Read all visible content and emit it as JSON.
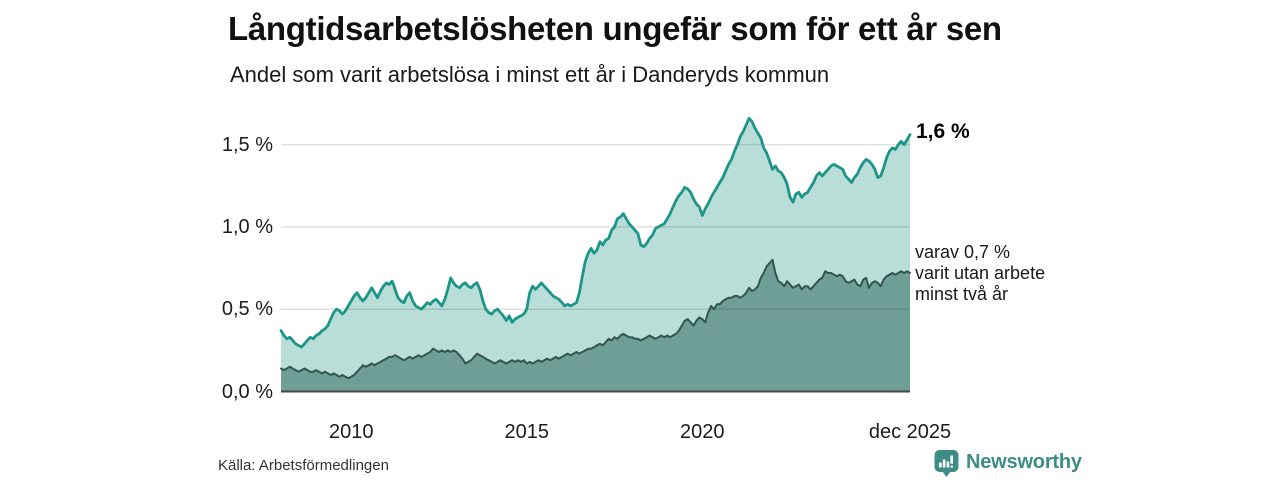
{
  "header": {
    "title": "Långtidsarbetslösheten ungefär som för ett år sen",
    "subtitle": "Andel som varit arbetslösa i minst ett år i Danderyds kommun"
  },
  "chart_data": {
    "type": "area",
    "title": "Långtidsarbetslösheten ungefär som för ett år sen",
    "subtitle": "Andel som varit arbetslösa i minst ett år i Danderyds kommun",
    "unit": "%",
    "frequency": "monthly",
    "x_domain": [
      2008.0,
      2025.9167
    ],
    "x_ticks": [
      "2010",
      "2015",
      "2020",
      "dec 2025"
    ],
    "x_tick_values": [
      2010,
      2015,
      2020,
      2025.9167
    ],
    "y_ticks": [
      "0,0 %",
      "0,5 %",
      "1,0 %",
      "1,5 %"
    ],
    "y_tick_values": [
      0,
      0.5,
      1.0,
      1.5
    ],
    "ylim": [
      0,
      1.7
    ],
    "grid": "horizontal",
    "legend": "none",
    "colors": {
      "baseline": "#454545",
      "grid": "rgba(0,0,0,0.12)"
    },
    "series": [
      {
        "name": "Andel arbetslösa minst ett år",
        "line": "#1d9588",
        "fill": "#b9ddd7",
        "line_width": 2.8,
        "end_value": 1.6,
        "values": [
          0.37,
          0.34,
          0.32,
          0.33,
          0.31,
          0.29,
          0.28,
          0.27,
          0.29,
          0.31,
          0.33,
          0.32,
          0.34,
          0.35,
          0.37,
          0.38,
          0.4,
          0.44,
          0.48,
          0.5,
          0.49,
          0.47,
          0.49,
          0.52,
          0.55,
          0.58,
          0.6,
          0.57,
          0.55,
          0.57,
          0.6,
          0.63,
          0.6,
          0.57,
          0.61,
          0.64,
          0.66,
          0.65,
          0.67,
          0.62,
          0.57,
          0.55,
          0.54,
          0.58,
          0.6,
          0.55,
          0.52,
          0.51,
          0.5,
          0.52,
          0.54,
          0.53,
          0.55,
          0.56,
          0.54,
          0.52,
          0.56,
          0.62,
          0.69,
          0.66,
          0.64,
          0.63,
          0.65,
          0.66,
          0.64,
          0.63,
          0.65,
          0.66,
          0.62,
          0.55,
          0.5,
          0.48,
          0.47,
          0.49,
          0.5,
          0.48,
          0.46,
          0.43,
          0.46,
          0.42,
          0.44,
          0.45,
          0.46,
          0.47,
          0.5,
          0.6,
          0.64,
          0.62,
          0.64,
          0.66,
          0.64,
          0.62,
          0.6,
          0.58,
          0.57,
          0.56,
          0.54,
          0.52,
          0.53,
          0.52,
          0.53,
          0.54,
          0.6,
          0.7,
          0.79,
          0.84,
          0.87,
          0.84,
          0.86,
          0.91,
          0.89,
          0.92,
          0.93,
          0.98,
          1.0,
          1.05,
          1.06,
          1.08,
          1.05,
          1.02,
          1.0,
          0.98,
          0.96,
          0.89,
          0.88,
          0.9,
          0.93,
          0.95,
          0.99,
          1.0,
          1.01,
          1.02,
          1.05,
          1.08,
          1.12,
          1.16,
          1.19,
          1.21,
          1.24,
          1.23,
          1.21,
          1.17,
          1.14,
          1.12,
          1.07,
          1.11,
          1.14,
          1.18,
          1.21,
          1.24,
          1.27,
          1.3,
          1.34,
          1.38,
          1.41,
          1.46,
          1.5,
          1.55,
          1.58,
          1.62,
          1.66,
          1.64,
          1.6,
          1.57,
          1.54,
          1.48,
          1.45,
          1.4,
          1.35,
          1.37,
          1.34,
          1.33,
          1.3,
          1.26,
          1.18,
          1.15,
          1.2,
          1.21,
          1.18,
          1.2,
          1.21,
          1.24,
          1.27,
          1.31,
          1.33,
          1.31,
          1.33,
          1.35,
          1.37,
          1.38,
          1.37,
          1.36,
          1.35,
          1.31,
          1.29,
          1.27,
          1.3,
          1.32,
          1.36,
          1.39,
          1.41,
          1.4,
          1.38,
          1.35,
          1.3,
          1.31,
          1.36,
          1.42,
          1.46,
          1.48,
          1.47,
          1.5,
          1.52,
          1.5,
          1.53,
          1.56
        ]
      },
      {
        "name": "varav utan arbete minst två år",
        "line": "#30564d",
        "fill": "#6f9e97",
        "line_width": 2,
        "end_value": 0.7,
        "values": [
          0.14,
          0.13,
          0.14,
          0.15,
          0.14,
          0.13,
          0.12,
          0.13,
          0.14,
          0.13,
          0.12,
          0.12,
          0.13,
          0.12,
          0.11,
          0.12,
          0.11,
          0.1,
          0.11,
          0.1,
          0.09,
          0.1,
          0.09,
          0.08,
          0.09,
          0.1,
          0.12,
          0.14,
          0.16,
          0.15,
          0.16,
          0.17,
          0.16,
          0.17,
          0.18,
          0.19,
          0.2,
          0.21,
          0.21,
          0.22,
          0.21,
          0.2,
          0.19,
          0.2,
          0.21,
          0.2,
          0.21,
          0.22,
          0.21,
          0.22,
          0.23,
          0.24,
          0.26,
          0.25,
          0.24,
          0.25,
          0.24,
          0.25,
          0.24,
          0.25,
          0.24,
          0.22,
          0.2,
          0.17,
          0.18,
          0.19,
          0.21,
          0.23,
          0.22,
          0.21,
          0.2,
          0.19,
          0.18,
          0.17,
          0.18,
          0.19,
          0.18,
          0.17,
          0.18,
          0.19,
          0.18,
          0.19,
          0.18,
          0.19,
          0.17,
          0.18,
          0.17,
          0.18,
          0.19,
          0.18,
          0.19,
          0.2,
          0.19,
          0.2,
          0.21,
          0.2,
          0.21,
          0.22,
          0.23,
          0.22,
          0.23,
          0.24,
          0.23,
          0.24,
          0.25,
          0.26,
          0.26,
          0.27,
          0.28,
          0.29,
          0.28,
          0.3,
          0.32,
          0.31,
          0.33,
          0.32,
          0.34,
          0.35,
          0.34,
          0.33,
          0.33,
          0.32,
          0.32,
          0.31,
          0.32,
          0.33,
          0.34,
          0.33,
          0.32,
          0.33,
          0.34,
          0.33,
          0.34,
          0.33,
          0.34,
          0.35,
          0.37,
          0.4,
          0.43,
          0.44,
          0.42,
          0.4,
          0.43,
          0.45,
          0.44,
          0.42,
          0.48,
          0.52,
          0.5,
          0.53,
          0.53,
          0.55,
          0.56,
          0.57,
          0.57,
          0.58,
          0.58,
          0.57,
          0.58,
          0.6,
          0.63,
          0.61,
          0.62,
          0.64,
          0.69,
          0.72,
          0.76,
          0.78,
          0.8,
          0.72,
          0.67,
          0.66,
          0.64,
          0.67,
          0.65,
          0.63,
          0.64,
          0.65,
          0.62,
          0.64,
          0.64,
          0.62,
          0.64,
          0.66,
          0.68,
          0.69,
          0.73,
          0.72,
          0.72,
          0.71,
          0.7,
          0.71,
          0.7,
          0.67,
          0.66,
          0.67,
          0.68,
          0.65,
          0.64,
          0.68,
          0.69,
          0.63,
          0.66,
          0.67,
          0.66,
          0.64,
          0.68,
          0.7,
          0.71,
          0.72,
          0.71,
          0.72,
          0.73,
          0.72,
          0.73,
          0.72
        ]
      }
    ],
    "annotations": {
      "total_end": "1,6 %",
      "secondary_lines": [
        "varav 0,7 %",
        "varit utan arbete",
        "minst två år"
      ]
    }
  },
  "footer": {
    "source": "Källa: Arbetsförmedlingen",
    "brand": "Newsworthy",
    "brand_color": "#3d8c86"
  }
}
